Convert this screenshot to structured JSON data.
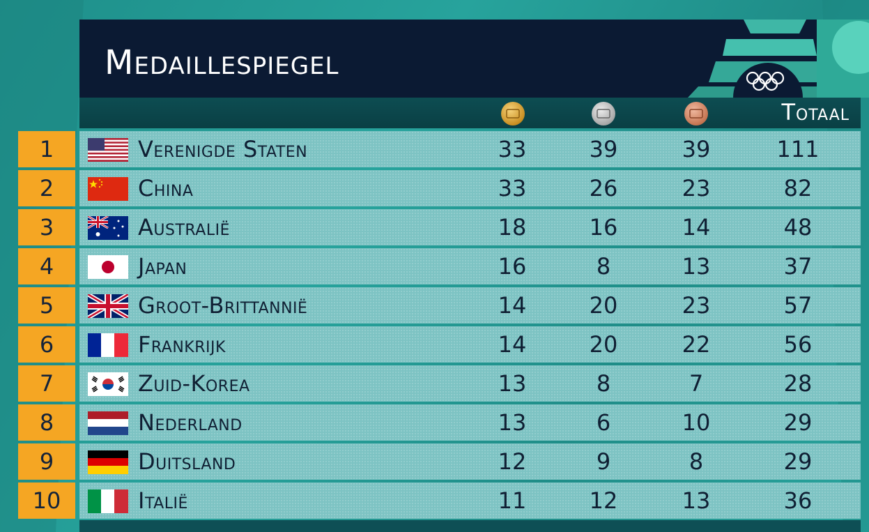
{
  "title": "Medaillespiegel",
  "columns": {
    "gold_icon": "gold-medal-icon",
    "silver_icon": "silver-medal-icon",
    "bronze_icon": "bronze-medal-icon",
    "total": "Totaal"
  },
  "colors": {
    "header_bg": "#0b1a33",
    "rank_bg": "#f5a623",
    "row_bg": "#7dc3c3",
    "text": "#0f1f33"
  },
  "rows": [
    {
      "rank": "1",
      "flag": "usa-flag-icon",
      "country": "Verenigde Staten",
      "gold": "33",
      "silver": "39",
      "bronze": "39",
      "total": "111"
    },
    {
      "rank": "2",
      "flag": "china-flag-icon",
      "country": "China",
      "gold": "33",
      "silver": "26",
      "bronze": "23",
      "total": "82"
    },
    {
      "rank": "3",
      "flag": "australia-flag-icon",
      "country": "Australië",
      "gold": "18",
      "silver": "16",
      "bronze": "14",
      "total": "48"
    },
    {
      "rank": "4",
      "flag": "japan-flag-icon",
      "country": "Japan",
      "gold": "16",
      "silver": "8",
      "bronze": "13",
      "total": "37"
    },
    {
      "rank": "5",
      "flag": "uk-flag-icon",
      "country": "Groot-Brittannië",
      "gold": "14",
      "silver": "20",
      "bronze": "23",
      "total": "57"
    },
    {
      "rank": "6",
      "flag": "france-flag-icon",
      "country": "Frankrijk",
      "gold": "14",
      "silver": "20",
      "bronze": "22",
      "total": "56"
    },
    {
      "rank": "7",
      "flag": "south-korea-flag-icon",
      "country": "Zuid-Korea",
      "gold": "13",
      "silver": "8",
      "bronze": "7",
      "total": "28"
    },
    {
      "rank": "8",
      "flag": "netherlands-flag-icon",
      "country": "Nederland",
      "gold": "13",
      "silver": "6",
      "bronze": "10",
      "total": "29"
    },
    {
      "rank": "9",
      "flag": "germany-flag-icon",
      "country": "Duitsland",
      "gold": "12",
      "silver": "9",
      "bronze": "8",
      "total": "29"
    },
    {
      "rank": "10",
      "flag": "italy-flag-icon",
      "country": "Italië",
      "gold": "11",
      "silver": "12",
      "bronze": "13",
      "total": "36"
    }
  ]
}
